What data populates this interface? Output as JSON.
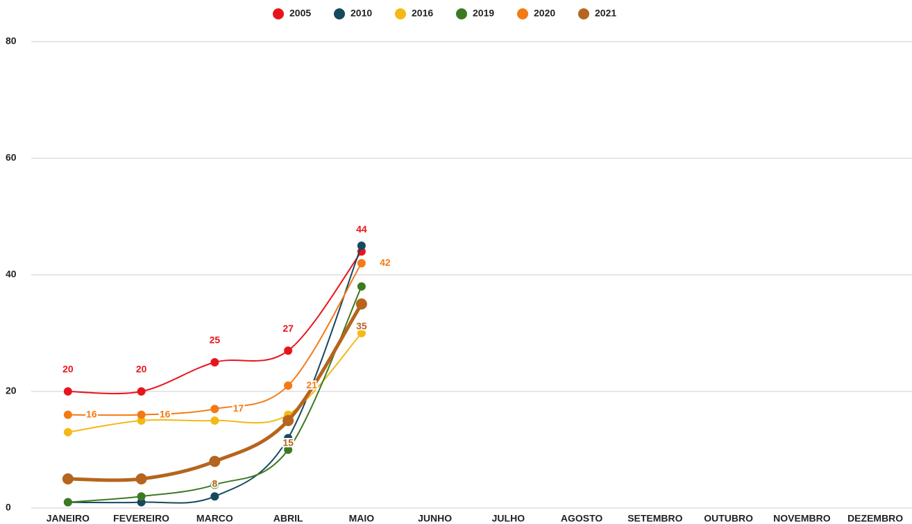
{
  "chart_data": {
    "type": "line",
    "categories": [
      "JANEIRO",
      "FEVEREIRO",
      "MARCO",
      "ABRIL",
      "MAIO",
      "JUNHO",
      "JULHO",
      "AGOSTO",
      "SETEMBRO",
      "OUTUBRO",
      "NOVEMBRO",
      "DEZEMBRO"
    ],
    "series": [
      {
        "name": "2005",
        "color": "#e8141c",
        "values": [
          20,
          20,
          25,
          27,
          44,
          null,
          null,
          null,
          null,
          null,
          null,
          null
        ],
        "value_labels": [
          "20",
          "20",
          "25",
          "27",
          "44",
          null,
          null,
          null,
          null,
          null,
          null,
          null
        ],
        "label_position": "above"
      },
      {
        "name": "2010",
        "color": "#15495e",
        "values": [
          1,
          1,
          2,
          12,
          45,
          null,
          null,
          null,
          null,
          null,
          null,
          null
        ]
      },
      {
        "name": "2016",
        "color": "#f4b915",
        "values": [
          13,
          15,
          15,
          16,
          30,
          null,
          null,
          null,
          null,
          null,
          null,
          null
        ]
      },
      {
        "name": "2019",
        "color": "#3b7a22",
        "values": [
          1,
          2,
          4,
          10,
          38,
          null,
          null,
          null,
          null,
          null,
          null,
          null
        ]
      },
      {
        "name": "2020",
        "color": "#f47a14",
        "values": [
          16,
          16,
          17,
          21,
          42,
          null,
          null,
          null,
          null,
          null,
          null,
          null
        ],
        "value_labels": [
          "16",
          "16",
          "17",
          "21",
          "42",
          null,
          null,
          null,
          null,
          null,
          null,
          null
        ],
        "label_position": "right"
      },
      {
        "name": "2021",
        "color": "#b5651d",
        "values": [
          5,
          5,
          8,
          15,
          35,
          null,
          null,
          null,
          null,
          null,
          null,
          null
        ],
        "thick": true,
        "value_labels": [
          null,
          null,
          "8",
          "15",
          "35",
          null,
          null,
          null,
          null,
          null,
          null,
          null
        ],
        "label_position": "below"
      }
    ],
    "ylim": [
      0,
      80
    ],
    "yticks": [
      0,
      20,
      40,
      60,
      80
    ],
    "grid": true,
    "smooth": true,
    "legend": "top"
  }
}
